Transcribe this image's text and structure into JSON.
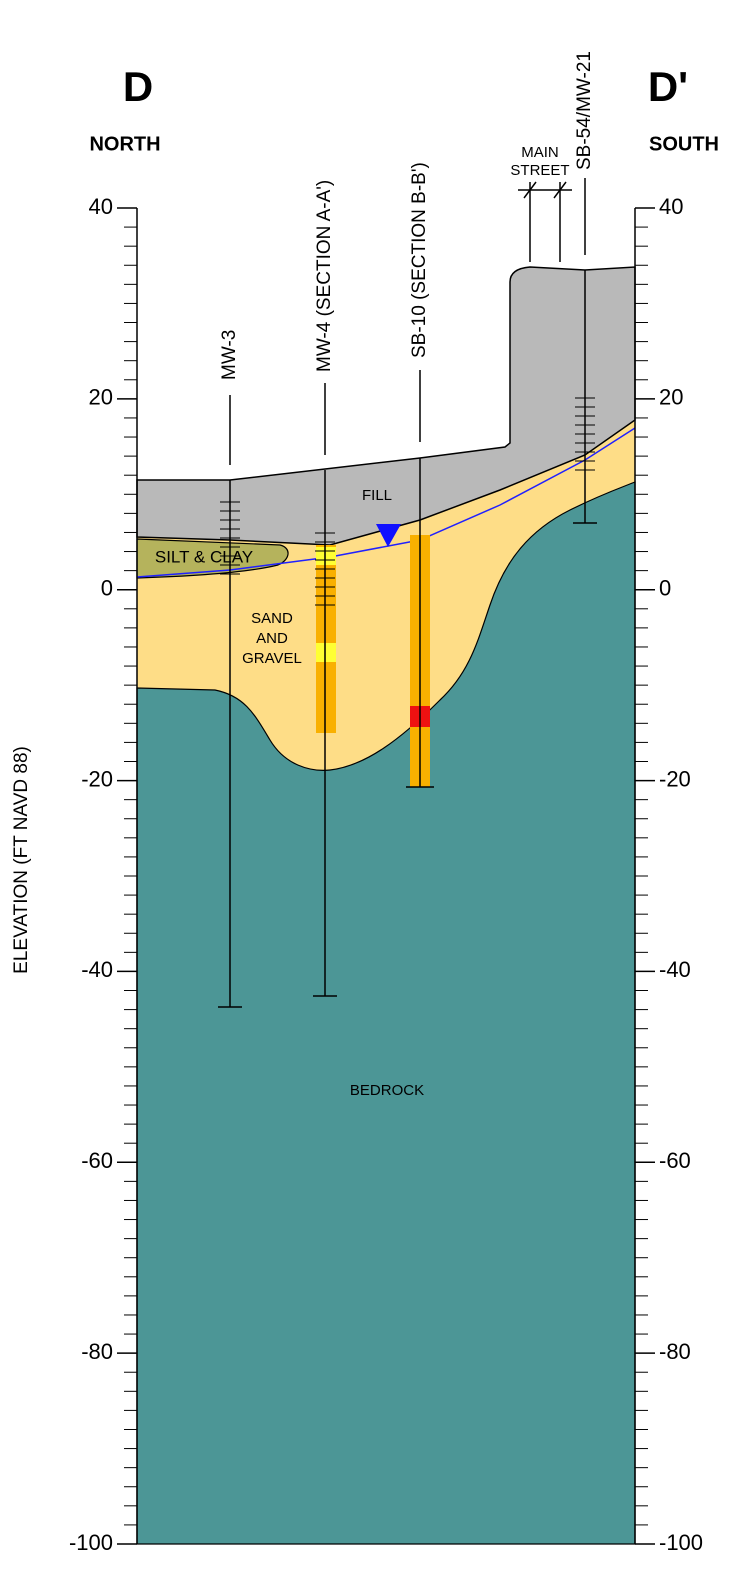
{
  "header": {
    "left": {
      "letter": "D",
      "direction": "NORTH"
    },
    "right": {
      "letter": "D'",
      "direction": "SOUTH"
    }
  },
  "axis": {
    "label": "ELEVATION (FT NAVD 88)",
    "ylim": [
      -100,
      40
    ],
    "yticks": [
      40,
      20,
      0,
      -20,
      -40,
      -60,
      -80,
      -100
    ]
  },
  "boreholes": [
    {
      "label": "MW-3"
    },
    {
      "label": "MW-4 (SECTION A-A')"
    },
    {
      "label": "SB-10 (SECTION B-B')"
    },
    {
      "label": "SB-54/MW-21"
    }
  ],
  "landmark": {
    "lines": [
      "MAIN",
      "STREET"
    ]
  },
  "layers": {
    "fill": "FILL",
    "silt": "SILT & CLAY",
    "sand": [
      "SAND",
      "AND",
      "GRAVEL"
    ],
    "bedrock": "BEDROCK"
  }
}
